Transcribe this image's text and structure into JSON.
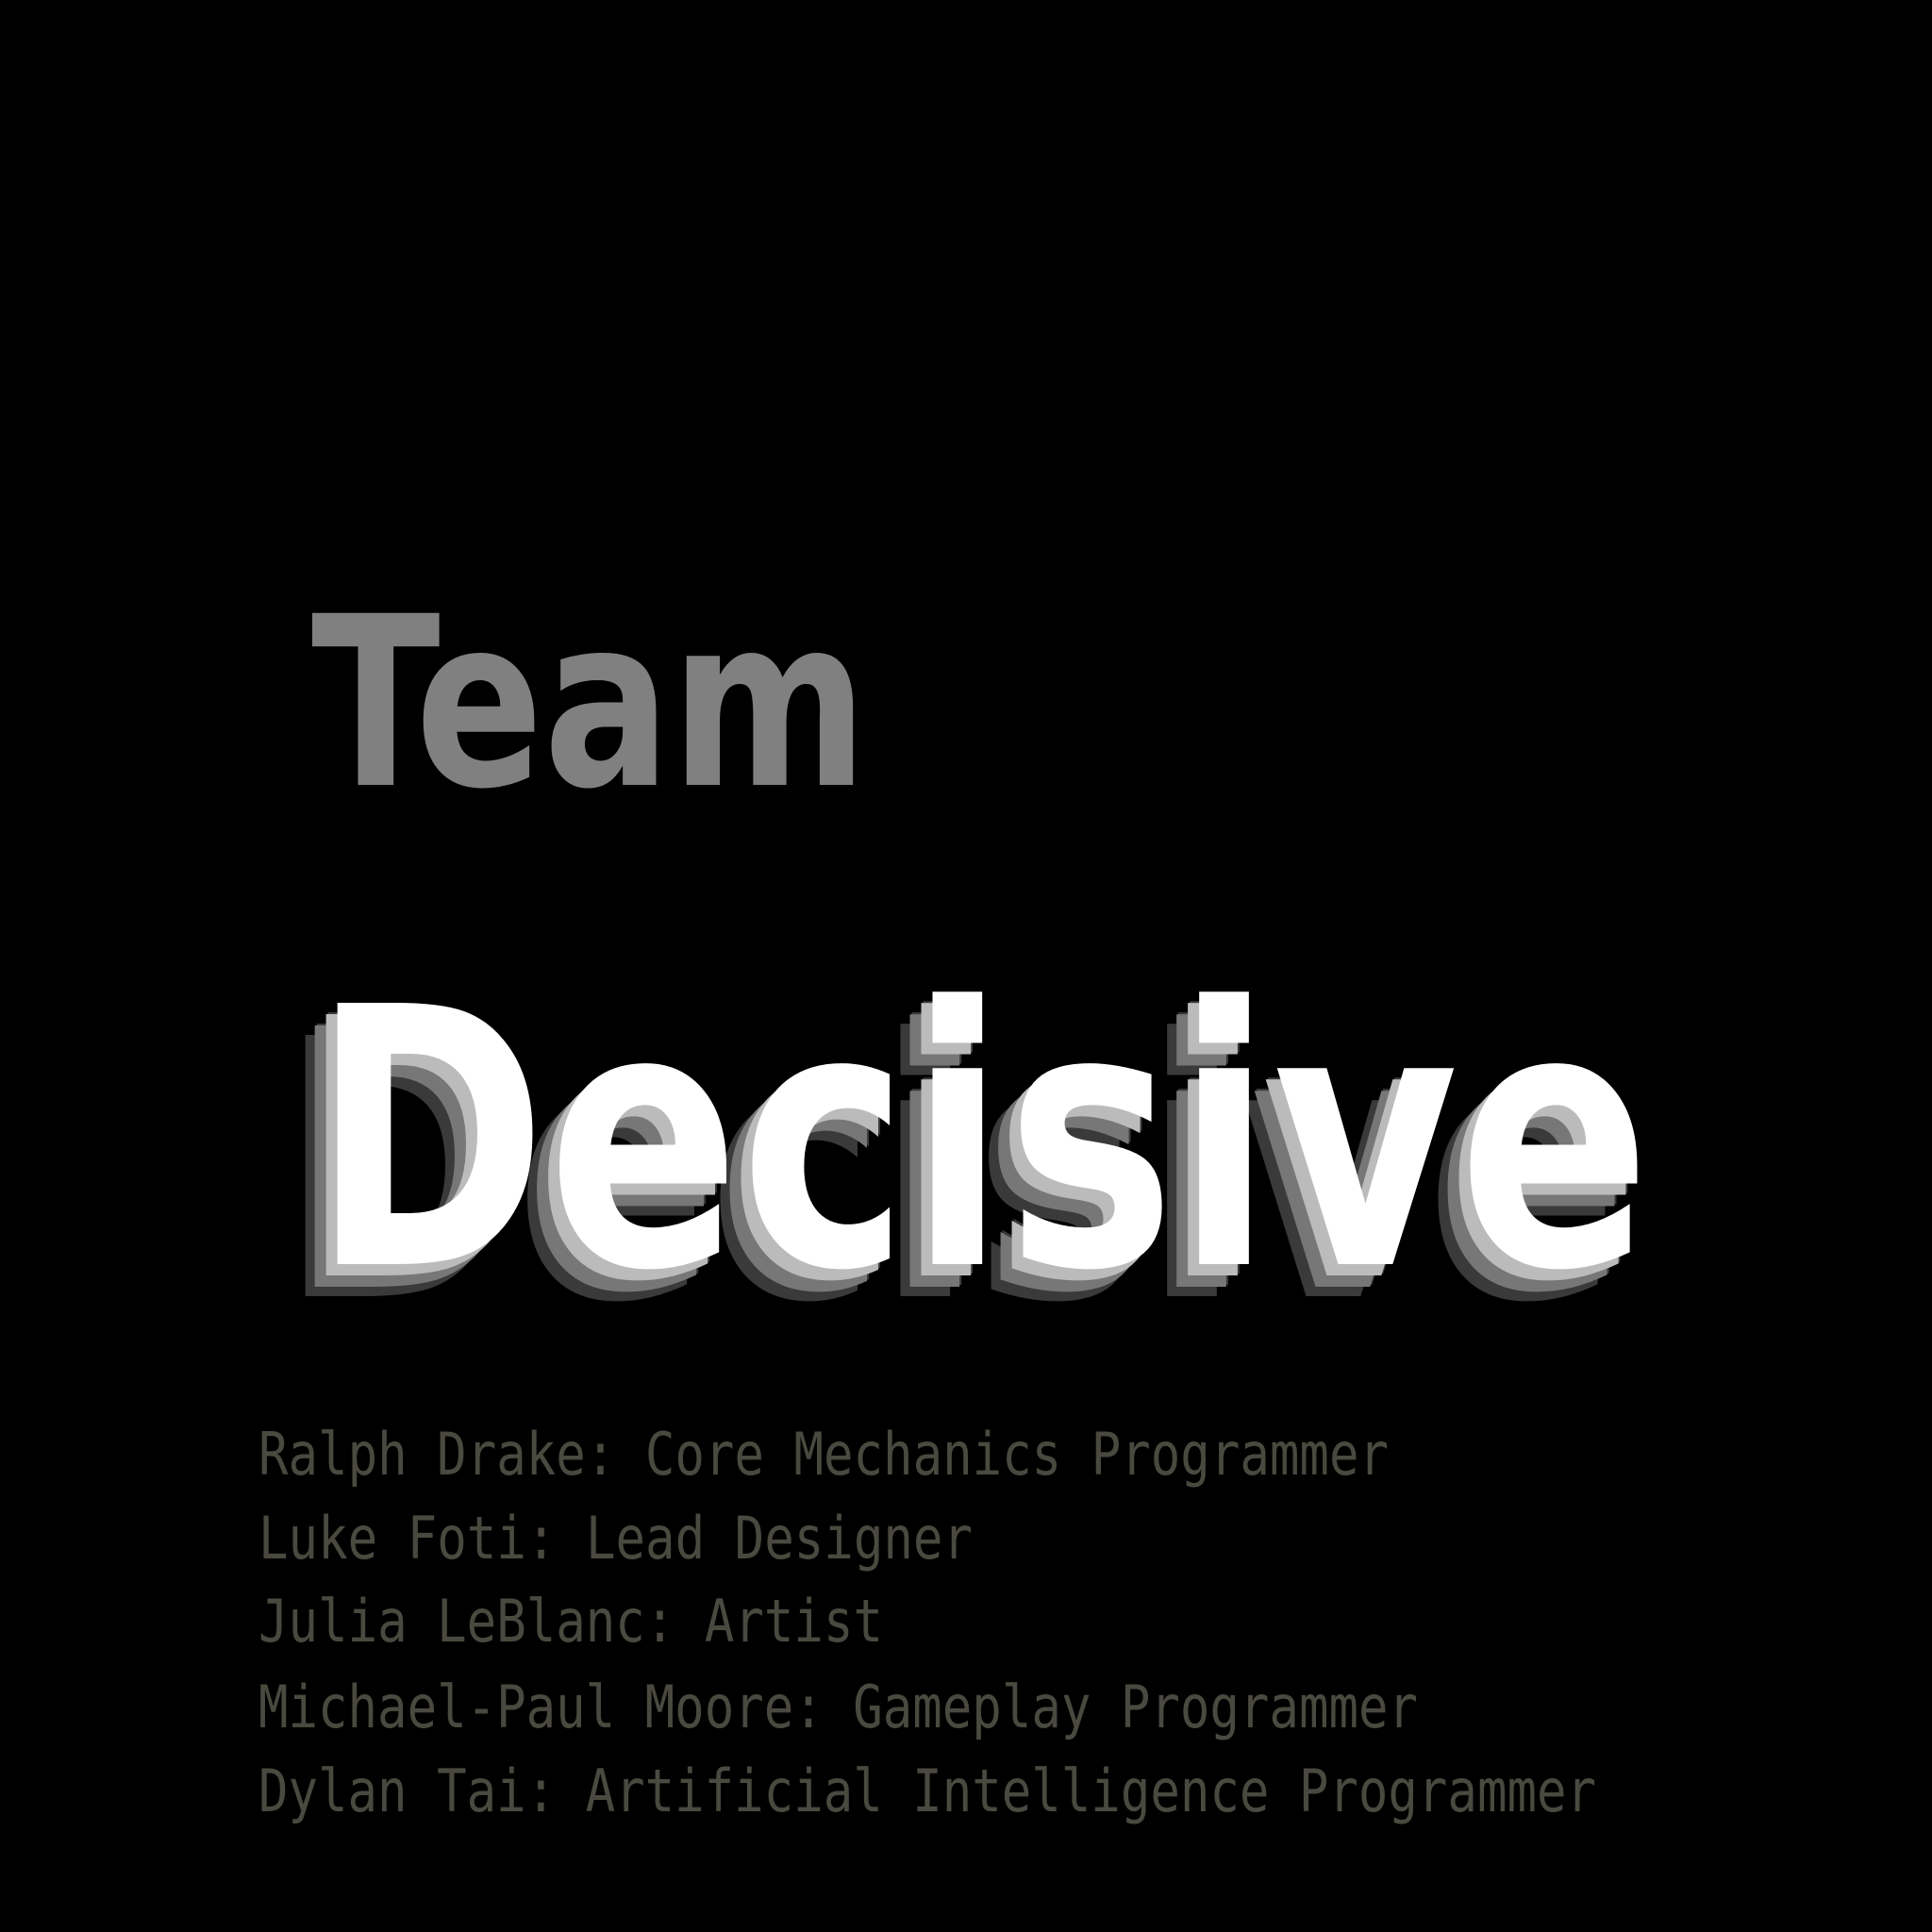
{
  "title": {
    "line1": "Team",
    "line2": "Decisive"
  },
  "credits": [
    "Ralph Drake: Core Mechanics Programmer",
    "Luke Foti: Lead Designer",
    "Julia LeBlanc: Artist",
    "Michael-Paul Moore: Gameplay Programmer",
    "Dylan Tai: Artificial Intelligence Programmer"
  ]
}
